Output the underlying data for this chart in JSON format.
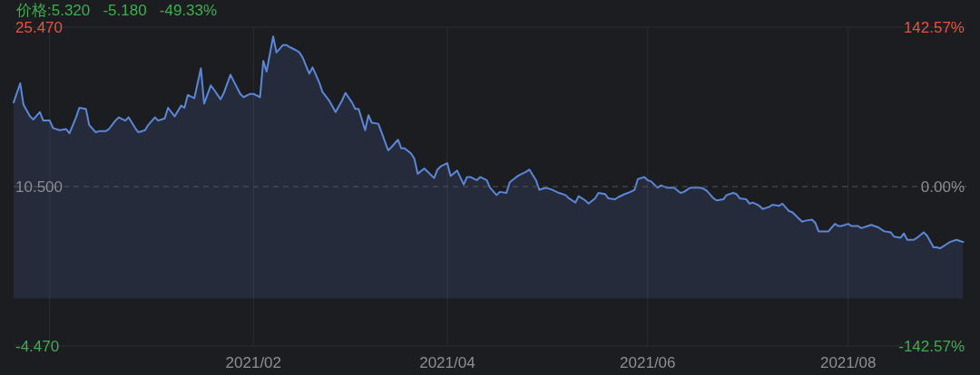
{
  "chart_data": {
    "type": "area",
    "title": "价格:5.320   -5.180   -49.33%",
    "x": [
      "2020-11-20",
      "2020-11-22",
      "2020-11-23",
      "2020-11-25",
      "2020-11-26",
      "2020-11-28",
      "2020-11-29",
      "2020-12-01",
      "2020-12-02",
      "2020-12-04",
      "2020-12-06",
      "2020-12-07",
      "2020-12-09",
      "2020-12-10",
      "2020-12-12",
      "2020-12-13",
      "2020-12-15",
      "2020-12-16",
      "2020-12-18",
      "2020-12-19",
      "2020-12-21",
      "2020-12-22",
      "2020-12-24",
      "2020-12-25",
      "2020-12-27",
      "2020-12-28",
      "2020-12-30",
      "2020-12-31",
      "2021-01-02",
      "2021-01-03",
      "2021-01-05",
      "2021-01-06",
      "2021-01-08",
      "2021-01-10",
      "2021-01-11",
      "2021-01-12",
      "2021-01-14",
      "2021-01-16",
      "2021-01-17",
      "2021-01-19",
      "2021-01-20",
      "2021-01-22",
      "2021-01-23",
      "2021-01-25",
      "2021-01-26",
      "2021-01-28",
      "2021-01-29",
      "2021-01-31",
      "2021-02-01",
      "2021-02-03",
      "2021-02-04",
      "2021-02-05",
      "2021-02-07",
      "2021-02-08",
      "2021-02-10",
      "2021-02-11",
      "2021-02-12",
      "2021-02-14",
      "2021-02-15",
      "2021-02-16",
      "2021-02-18",
      "2021-02-19",
      "2021-02-21",
      "2021-02-22",
      "2021-02-24",
      "2021-02-26",
      "2021-02-28",
      "2021-03-01",
      "2021-03-03",
      "2021-03-04",
      "2021-03-05",
      "2021-03-07",
      "2021-03-08",
      "2021-03-09",
      "2021-03-11",
      "2021-03-12",
      "2021-03-14",
      "2021-03-15",
      "2021-03-17",
      "2021-03-18",
      "2021-03-19",
      "2021-03-21",
      "2021-03-22",
      "2021-03-23",
      "2021-03-25",
      "2021-03-26",
      "2021-03-28",
      "2021-03-29",
      "2021-03-30",
      "2021-04-01",
      "2021-04-02",
      "2021-04-04",
      "2021-04-06",
      "2021-04-07",
      "2021-04-08",
      "2021-04-10",
      "2021-04-11",
      "2021-04-13",
      "2021-04-14",
      "2021-04-16",
      "2021-04-17",
      "2021-04-19",
      "2021-04-20",
      "2021-04-22",
      "2021-04-23",
      "2021-04-25",
      "2021-04-26",
      "2021-04-28",
      "2021-04-29",
      "2021-05-01",
      "2021-05-02",
      "2021-05-03",
      "2021-05-05",
      "2021-05-07",
      "2021-05-08",
      "2021-05-10",
      "2021-05-11",
      "2021-05-13",
      "2021-05-14",
      "2021-05-16",
      "2021-05-17",
      "2021-05-19",
      "2021-05-20",
      "2021-05-22",
      "2021-05-23",
      "2021-05-25",
      "2021-05-26",
      "2021-05-28",
      "2021-05-29",
      "2021-05-31",
      "2021-06-01",
      "2021-06-02",
      "2021-06-04",
      "2021-06-05",
      "2021-06-07",
      "2021-06-08",
      "2021-06-09",
      "2021-06-11",
      "2021-06-12",
      "2021-06-14",
      "2021-06-15",
      "2021-06-17",
      "2021-06-18",
      "2021-06-19",
      "2021-06-21",
      "2021-06-22",
      "2021-06-24",
      "2021-06-25",
      "2021-06-27",
      "2021-06-28",
      "2021-06-29",
      "2021-07-01",
      "2021-07-02",
      "2021-07-03",
      "2021-07-05",
      "2021-07-06",
      "2021-07-08",
      "2021-07-09",
      "2021-07-11",
      "2021-07-12",
      "2021-07-14",
      "2021-07-15",
      "2021-07-16",
      "2021-07-18",
      "2021-07-19",
      "2021-07-21",
      "2021-07-22",
      "2021-07-23",
      "2021-07-25",
      "2021-07-26",
      "2021-07-28",
      "2021-07-29",
      "2021-07-30",
      "2021-08-01",
      "2021-08-02",
      "2021-08-04",
      "2021-08-05",
      "2021-08-07",
      "2021-08-08",
      "2021-08-10",
      "2021-08-11",
      "2021-08-12",
      "2021-08-14",
      "2021-08-15",
      "2021-08-17",
      "2021-08-18",
      "2021-08-19",
      "2021-08-21",
      "2021-08-22",
      "2021-08-24",
      "2021-08-25",
      "2021-08-27",
      "2021-08-28",
      "2021-08-29",
      "2021-08-31",
      "2021-09-01",
      "2021-09-03",
      "2021-09-04",
      "2021-09-05"
    ],
    "series": [
      {
        "color": "#5b87d9",
        "values": [
          18.4,
          20.2,
          18.2,
          17.1,
          16.8,
          17.5,
          16.7,
          16.7,
          16.0,
          15.8,
          15.9,
          15.5,
          17.0,
          17.9,
          17.8,
          16.3,
          15.6,
          15.7,
          15.7,
          15.9,
          16.7,
          17.0,
          16.7,
          17.0,
          16.0,
          15.6,
          15.8,
          16.3,
          17.0,
          16.7,
          16.9,
          17.9,
          17.1,
          18.1,
          17.9,
          19.1,
          18.8,
          21.6,
          18.3,
          20.0,
          19.6,
          18.7,
          19.3,
          21.0,
          20.4,
          19.2,
          18.9,
          19.2,
          19.2,
          18.9,
          22.3,
          21.3,
          24.6,
          23.1,
          23.8,
          23.8,
          23.6,
          23.3,
          23.1,
          22.6,
          21.1,
          21.7,
          20.3,
          19.4,
          18.6,
          17.5,
          18.6,
          19.3,
          18.4,
          17.8,
          17.8,
          15.8,
          17.2,
          16.5,
          16.4,
          15.6,
          13.9,
          14.2,
          14.9,
          14.1,
          14.1,
          13.6,
          13.1,
          11.7,
          12.2,
          11.9,
          11.3,
          12.1,
          12.4,
          12.7,
          11.5,
          12.0,
          10.7,
          11.4,
          11.4,
          11.1,
          11.4,
          11.1,
          10.4,
          9.7,
          10.0,
          9.9,
          10.9,
          11.4,
          11.6,
          11.9,
          12.1,
          11.1,
          10.2,
          10.4,
          10.3,
          10.2,
          9.9,
          9.7,
          9.4,
          9.0,
          9.6,
          9.2,
          8.9,
          9.4,
          9.9,
          9.8,
          9.4,
          9.3,
          9.5,
          9.8,
          9.9,
          10.2,
          11.2,
          11.4,
          11.1,
          11.0,
          10.4,
          10.6,
          10.4,
          10.4,
          10.4,
          9.9,
          10.0,
          10.4,
          10.4,
          10.4,
          10.3,
          10.1,
          9.4,
          9.2,
          9.3,
          9.7,
          9.9,
          9.8,
          9.4,
          9.3,
          8.9,
          9.0,
          8.7,
          8.4,
          8.6,
          8.8,
          8.7,
          8.9,
          8.2,
          8.1,
          7.8,
          7.2,
          7.3,
          7.4,
          7.1,
          6.3,
          6.3,
          6.3,
          7.0,
          6.8,
          6.8,
          7.0,
          6.8,
          6.8,
          6.6,
          6.8,
          6.9,
          6.7,
          6.5,
          6.3,
          6.2,
          5.8,
          5.7,
          6.1,
          5.5,
          5.5,
          5.7,
          6.2,
          5.9,
          4.8,
          4.8,
          4.7,
          5.1,
          5.3,
          5.5,
          5.4,
          5.3
        ]
      }
    ],
    "xlim": [
      "2020-11-20",
      "2021-09-06"
    ],
    "xticks": [
      {
        "value": "2020-12",
        "label": null
      },
      {
        "value": "2021-02",
        "label": "2021/02"
      },
      {
        "value": "2021-04",
        "label": "2021/04"
      },
      {
        "value": "2021-06",
        "label": "2021/06"
      },
      {
        "value": "2021-08",
        "label": "2021/08"
      }
    ],
    "ylim": [
      -4.47,
      25.47
    ],
    "yticks": [
      {
        "value": -4.47,
        "label": "-4.470"
      },
      {
        "value": 10.5,
        "label": "10.500"
      },
      {
        "value": 25.47,
        "label": "25.470"
      }
    ],
    "y2lim": [
      -142.57,
      142.57
    ],
    "y2ticks": [
      {
        "value": -142.57,
        "label": "-142.57%"
      },
      {
        "value": 0,
        "label": "0.00%"
      },
      {
        "value": 142.57,
        "label": "142.57%"
      }
    ],
    "grid": "x",
    "ref_lines": [
      {
        "axis": "y",
        "value": 10.5,
        "line_style": "dashed",
        "color": "#55575d"
      }
    ]
  }
}
